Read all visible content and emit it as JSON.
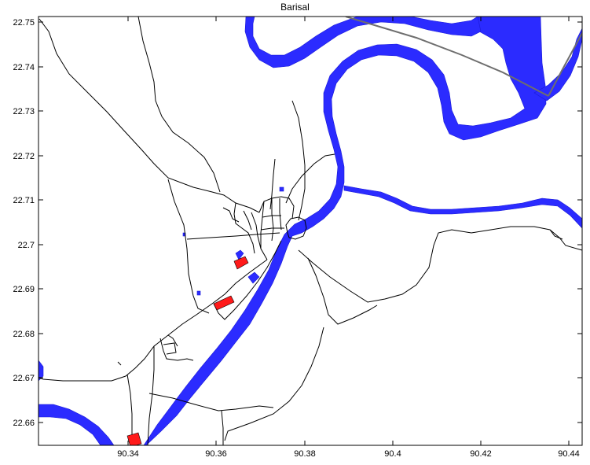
{
  "title": "Barisal",
  "colors": {
    "water": "#2b2bff",
    "building": "#ff1a1a",
    "road": "#000000",
    "railway": "#707070",
    "background": "#ffffff"
  },
  "axes": {
    "x_ticks": [
      "90.34",
      "90.36",
      "90.38",
      "90.4",
      "90.42",
      "90.44"
    ],
    "y_ticks": [
      "22.75",
      "22.74",
      "22.73",
      "22.72",
      "22.71",
      "22.7",
      "22.69",
      "22.68",
      "22.67",
      "22.66"
    ]
  },
  "legend": []
}
